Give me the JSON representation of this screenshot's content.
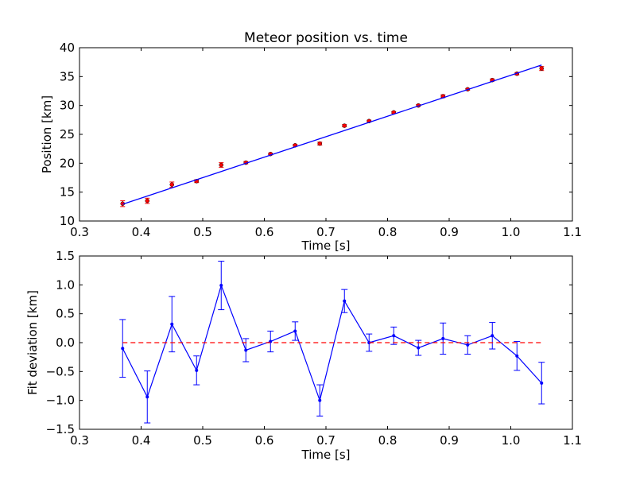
{
  "chart_data": [
    {
      "type": "scatter",
      "title": "Meteor position vs. time",
      "xlabel": "Time [s]",
      "ylabel": "Position [km]",
      "xlim": [
        0.3,
        1.1
      ],
      "ylim": [
        10,
        40
      ],
      "xticks": [
        "0.3",
        "0.4",
        "0.5",
        "0.6",
        "0.7",
        "0.8",
        "0.9",
        "1.0",
        "1.1"
      ],
      "yticks": [
        "10",
        "15",
        "20",
        "25",
        "30",
        "35",
        "40"
      ],
      "grid": false,
      "colors": {
        "points": "#ff0000",
        "fit": "#0000ff"
      },
      "series": [
        {
          "kind": "errorbar-points",
          "x": [
            0.37,
            0.41,
            0.45,
            0.49,
            0.53,
            0.57,
            0.61,
            0.65,
            0.69,
            0.73,
            0.77,
            0.81,
            0.85,
            0.89,
            0.93,
            0.97,
            1.01,
            1.05
          ],
          "y": [
            13.0,
            13.5,
            16.3,
            16.9,
            19.7,
            20.1,
            21.6,
            23.1,
            23.4,
            26.5,
            27.3,
            28.8,
            30.0,
            31.6,
            32.8,
            34.4,
            35.5,
            36.4
          ],
          "yerr": [
            0.5,
            0.45,
            0.45,
            0.25,
            0.4,
            0.2,
            0.15,
            0.15,
            0.25,
            0.2,
            0.15,
            0.15,
            0.15,
            0.25,
            0.15,
            0.2,
            0.2,
            0.35
          ]
        },
        {
          "kind": "fit-line",
          "x": [
            0.37,
            1.05
          ],
          "y": [
            12.9,
            37.0
          ]
        }
      ]
    },
    {
      "type": "line",
      "xlabel": "Time [s]",
      "ylabel": "Fit deviation [km]",
      "xlim": [
        0.3,
        1.1
      ],
      "ylim": [
        -1.5,
        1.5
      ],
      "xticks": [
        "0.3",
        "0.4",
        "0.5",
        "0.6",
        "0.7",
        "0.8",
        "0.9",
        "1.0",
        "1.1"
      ],
      "yticks": [
        "−1.5",
        "−1.0",
        "−0.5",
        "0.0",
        "0.5",
        "1.0",
        "1.5"
      ],
      "grid": false,
      "colors": {
        "deviation": "#0000ff",
        "zero": "#ff0000"
      },
      "series": [
        {
          "kind": "errorbar-line",
          "x": [
            0.37,
            0.41,
            0.45,
            0.49,
            0.53,
            0.57,
            0.61,
            0.65,
            0.69,
            0.73,
            0.77,
            0.81,
            0.85,
            0.89,
            0.93,
            0.97,
            1.01,
            1.05
          ],
          "y": [
            -0.1,
            -0.94,
            0.32,
            -0.48,
            0.99,
            -0.13,
            0.02,
            0.2,
            -1.0,
            0.72,
            0.0,
            0.12,
            -0.09,
            0.07,
            -0.04,
            0.12,
            -0.23,
            -0.7
          ],
          "yerr": [
            0.5,
            0.45,
            0.48,
            0.25,
            0.42,
            0.2,
            0.18,
            0.16,
            0.27,
            0.2,
            0.15,
            0.15,
            0.13,
            0.27,
            0.16,
            0.23,
            0.25,
            0.36
          ]
        },
        {
          "kind": "zero-line",
          "x": [
            0.37,
            1.05
          ],
          "y": [
            0,
            0
          ]
        }
      ]
    }
  ]
}
